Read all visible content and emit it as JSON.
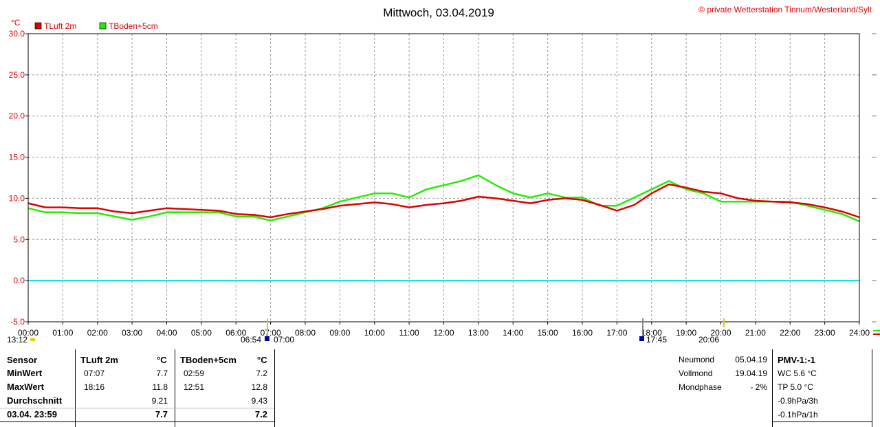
{
  "header": {
    "title": "Mittwoch, 03.04.2019",
    "copyright": "© private Wetterstation Tinnum/Westerland/Sylt"
  },
  "chart_data": {
    "type": "line",
    "yunit": "°C",
    "ylim": [
      -5,
      30
    ],
    "yticks": [
      "30.0",
      "25.0",
      "20.0",
      "15.0",
      "10.0",
      "5.0",
      "0.0",
      "-5.0"
    ],
    "xticks": [
      "00:00",
      "01:00",
      "02:00",
      "03:00",
      "04:00",
      "05:00",
      "06:00",
      "07:00",
      "08:00",
      "09:00",
      "10:00",
      "11:00",
      "12:00",
      "13:00",
      "14:00",
      "15:00",
      "16:00",
      "17:00",
      "18:00",
      "19:00",
      "20:00",
      "21:00",
      "22:00",
      "23:00",
      "24:00"
    ],
    "grid": true,
    "legend": "top-left",
    "x_hours": [
      0,
      0.5,
      1,
      1.5,
      2,
      2.5,
      3,
      3.5,
      4,
      4.5,
      5,
      5.5,
      6,
      6.5,
      7,
      7.5,
      8,
      8.5,
      9,
      9.5,
      10,
      10.5,
      11,
      11.5,
      12,
      12.5,
      13,
      13.5,
      14,
      14.5,
      15,
      15.5,
      16,
      16.5,
      17,
      17.5,
      18,
      18.5,
      19,
      19.5,
      20,
      20.5,
      21,
      21.5,
      22,
      22.5,
      23,
      23.5,
      24
    ],
    "series": [
      {
        "name": "TLuft 2m",
        "color": "#e00000",
        "values": [
          9.4,
          8.9,
          8.9,
          8.8,
          8.8,
          8.4,
          8.2,
          8.5,
          8.8,
          8.7,
          8.6,
          8.5,
          8.1,
          8.0,
          7.7,
          8.1,
          8.4,
          8.7,
          9.1,
          9.3,
          9.5,
          9.3,
          8.9,
          9.2,
          9.4,
          9.7,
          10.2,
          10.0,
          9.7,
          9.4,
          9.8,
          10.0,
          9.8,
          9.2,
          8.5,
          9.2,
          10.6,
          11.7,
          11.3,
          10.8,
          10.6,
          10.0,
          9.7,
          9.6,
          9.5,
          9.3,
          8.9,
          8.4,
          7.7
        ]
      },
      {
        "name": "TBoden+5cm",
        "color": "#22ee00",
        "values": [
          8.8,
          8.3,
          8.3,
          8.2,
          8.2,
          7.8,
          7.4,
          7.8,
          8.3,
          8.3,
          8.3,
          8.3,
          7.8,
          7.8,
          7.3,
          7.8,
          8.3,
          8.8,
          9.6,
          10.1,
          10.6,
          10.6,
          10.1,
          11.1,
          11.6,
          12.1,
          12.8,
          11.6,
          10.6,
          10.1,
          10.6,
          10.1,
          10.1,
          9.1,
          9.1,
          10.1,
          11.1,
          12.1,
          11.1,
          10.6,
          9.6,
          9.6,
          9.6,
          9.6,
          9.6,
          9.1,
          8.6,
          8.1,
          7.2
        ]
      },
      {
        "name": "0-Linie",
        "color": "#00e0e0",
        "values": [
          0,
          0,
          0,
          0,
          0,
          0,
          0,
          0,
          0,
          0,
          0,
          0,
          0,
          0,
          0,
          0,
          0,
          0,
          0,
          0,
          0,
          0,
          0,
          0,
          0,
          0,
          0,
          0,
          0,
          0,
          0,
          0,
          0,
          0,
          0,
          0,
          0,
          0,
          0,
          0,
          0,
          0,
          0,
          0,
          0,
          0,
          0,
          0,
          0
        ]
      }
    ],
    "below_axis": {
      "left_time": "13:12",
      "sunrise": "06:54",
      "sunrise2": "07:00",
      "sunset": "17:45",
      "right_time": "20:06"
    }
  },
  "table": {
    "rows": [
      "Sensor",
      "MinWert",
      "MaxWert",
      "Durchschnitt",
      "03.04. 23:59"
    ],
    "col1": {
      "header": "TLuft 2m",
      "unit": "°C",
      "min_time": "07:07",
      "min": "7.7",
      "max_time": "18:16",
      "max": "11.8",
      "avg": "9.21",
      "last": "7.7"
    },
    "col2": {
      "header": "TBoden+5cm",
      "unit": "°C",
      "min_time": "02:59",
      "min": "7.2",
      "max_time": "12:51",
      "max": "12.8",
      "avg": "9.43",
      "last": "7.2"
    },
    "moon": [
      {
        "label": "Neumond",
        "value": "05.04.19"
      },
      {
        "label": "Vollmond",
        "value": "19.04.19"
      },
      {
        "label": "Mondphase",
        "value": "- 2%"
      }
    ],
    "pmv": [
      "PMV-1:-1",
      "WC 5.6 °C",
      "TP 5.0 °C",
      "-0.9hPa/3h",
      "-0.1hPa/1h"
    ]
  }
}
